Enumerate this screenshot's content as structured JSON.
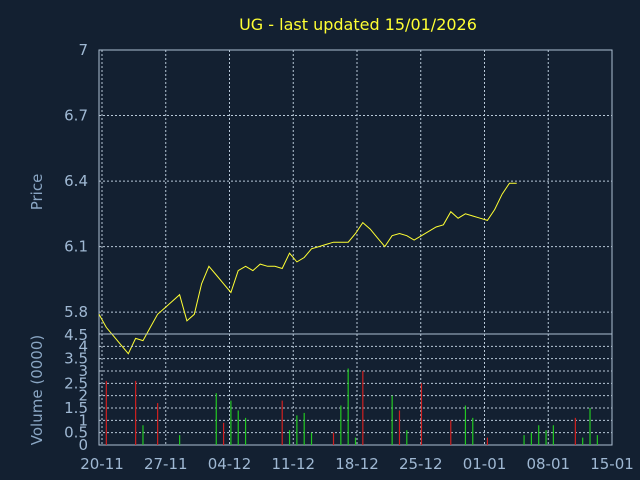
{
  "chart_data": {
    "type": "line",
    "title": "UG - last updated 15/01/2026",
    "xlabel": "",
    "x_tick_labels": [
      "20-11",
      "27-11",
      "04-12",
      "11-12",
      "18-12",
      "25-12",
      "01-01",
      "08-01",
      "15-01"
    ],
    "grid": true,
    "colors": {
      "background": "#132031",
      "title": "#ffff33",
      "price_line": "#ffff33",
      "volume_up": "#22c722",
      "volume_down": "#d02020",
      "grid": "#b8c8d8",
      "ticks": "#9fb8d3"
    },
    "price_panel": {
      "ylabel": "Price",
      "ylim": [
        5.7,
        7.0
      ],
      "y_ticks": [
        5.8,
        6.1,
        6.4,
        6.7,
        7
      ],
      "y_tick_labels": [
        "5.8",
        "6.1",
        "6.4",
        "6.7",
        "7"
      ],
      "series": [
        {
          "x": [
            0,
            1,
            2,
            3,
            4,
            5,
            6,
            7,
            8,
            9,
            10,
            11,
            12,
            13,
            14,
            15,
            16,
            17,
            18,
            19,
            20,
            21,
            22,
            23,
            24,
            25,
            26,
            27,
            28,
            29,
            30,
            31,
            32,
            33,
            34,
            35,
            36,
            37,
            38,
            39,
            40,
            41,
            42,
            43,
            44,
            45,
            46,
            47,
            48,
            49,
            50,
            51,
            52,
            53,
            54,
            55,
            56,
            57
          ],
          "values": [
            5.79,
            5.73,
            5.69,
            5.65,
            5.61,
            5.68,
            5.67,
            5.73,
            5.79,
            5.82,
            5.85,
            5.88,
            5.76,
            5.79,
            5.93,
            6.01,
            5.97,
            5.93,
            5.89,
            5.99,
            6.01,
            5.99,
            6.02,
            6.01,
            6.01,
            6.0,
            6.07,
            6.03,
            6.05,
            6.09,
            6.1,
            6.11,
            6.12,
            6.12,
            6.12,
            6.16,
            6.21,
            6.18,
            6.14,
            6.1,
            6.15,
            6.16,
            6.15,
            6.13,
            6.15,
            6.17,
            6.19,
            6.2,
            6.26,
            6.23,
            6.25,
            6.24,
            6.23,
            6.22,
            6.27,
            6.34,
            6.39,
            6.39
          ]
        }
      ]
    },
    "volume_panel": {
      "ylabel": "Volume (0000)",
      "ylim": [
        0,
        4.5
      ],
      "y_ticks": [
        0,
        0.5,
        1,
        1.5,
        2,
        2.5,
        3,
        3.5,
        4
      ],
      "y_tick_labels": [
        "0",
        "0.5",
        "1",
        "1.5",
        "2",
        "2.5",
        "3",
        "3.5",
        "4"
      ],
      "top_label": "4.5",
      "bars": [
        {
          "x": 1,
          "value": 2.6,
          "dir": "down"
        },
        {
          "x": 5,
          "value": 2.6,
          "dir": "down"
        },
        {
          "x": 6,
          "value": 0.8,
          "dir": "up"
        },
        {
          "x": 8,
          "value": 1.7,
          "dir": "down"
        },
        {
          "x": 11,
          "value": 0.4,
          "dir": "up"
        },
        {
          "x": 16,
          "value": 2.1,
          "dir": "up"
        },
        {
          "x": 17,
          "value": 0.9,
          "dir": "down"
        },
        {
          "x": 18,
          "value": 1.8,
          "dir": "up"
        },
        {
          "x": 19,
          "value": 1.4,
          "dir": "up"
        },
        {
          "x": 20,
          "value": 1.1,
          "dir": "up"
        },
        {
          "x": 25,
          "value": 1.8,
          "dir": "down"
        },
        {
          "x": 26,
          "value": 0.6,
          "dir": "up"
        },
        {
          "x": 27,
          "value": 1.2,
          "dir": "up"
        },
        {
          "x": 28,
          "value": 1.3,
          "dir": "up"
        },
        {
          "x": 29,
          "value": 0.5,
          "dir": "up"
        },
        {
          "x": 32,
          "value": 0.5,
          "dir": "down"
        },
        {
          "x": 33,
          "value": 1.6,
          "dir": "up"
        },
        {
          "x": 34,
          "value": 3.1,
          "dir": "up"
        },
        {
          "x": 35,
          "value": 0.3,
          "dir": "up"
        },
        {
          "x": 36,
          "value": 3.0,
          "dir": "down"
        },
        {
          "x": 40,
          "value": 2.0,
          "dir": "up"
        },
        {
          "x": 41,
          "value": 1.4,
          "dir": "down"
        },
        {
          "x": 42,
          "value": 0.6,
          "dir": "up"
        },
        {
          "x": 44,
          "value": 2.5,
          "dir": "down"
        },
        {
          "x": 48,
          "value": 1.0,
          "dir": "down"
        },
        {
          "x": 50,
          "value": 1.6,
          "dir": "up"
        },
        {
          "x": 51,
          "value": 1.1,
          "dir": "up"
        },
        {
          "x": 53,
          "value": 0.3,
          "dir": "down"
        },
        {
          "x": 58,
          "value": 0.4,
          "dir": "up"
        },
        {
          "x": 59,
          "value": 0.5,
          "dir": "up"
        },
        {
          "x": 60,
          "value": 0.8,
          "dir": "up"
        },
        {
          "x": 61,
          "value": 0.6,
          "dir": "up"
        },
        {
          "x": 62,
          "value": 0.8,
          "dir": "up"
        },
        {
          "x": 65,
          "value": 1.1,
          "dir": "down"
        },
        {
          "x": 66,
          "value": 0.3,
          "dir": "up"
        },
        {
          "x": 67,
          "value": 1.5,
          "dir": "up"
        },
        {
          "x": 68,
          "value": 0.4,
          "dir": "up"
        }
      ]
    }
  }
}
